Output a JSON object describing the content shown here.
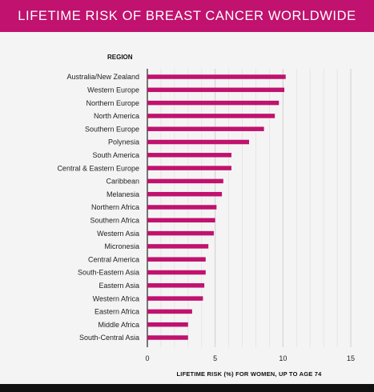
{
  "chart_data": {
    "type": "bar",
    "orientation": "horizontal",
    "title": "LIFETIME RISK OF BREAST CANCER WORLDWIDE",
    "ylabel": "REGION",
    "xlabel": "LIFETIME RISK (%) FOR WOMEN, UP TO AGE 74",
    "xlim": [
      0,
      15
    ],
    "xticks": [
      "0",
      "5",
      "10",
      "15"
    ],
    "grid": true,
    "categories": [
      "Australia/New Zealand",
      "Western Europe",
      "Northern Europe",
      "North America",
      "Southern Europe",
      "Polynesia",
      "South America",
      "Central & Eastern Europe",
      "Caribbean",
      "Melanesia",
      "Northern Africa",
      "Southern Africa",
      "Western Asia",
      "Micronesia",
      "Central America",
      "South-Eastern Asia",
      "Eastern Asia",
      "Western Africa",
      "Eastern Africa",
      "Middle Africa",
      "South-Central Asia"
    ],
    "values": [
      10.2,
      10.1,
      9.7,
      9.4,
      8.6,
      7.5,
      6.2,
      6.2,
      5.6,
      5.5,
      5.1,
      5.0,
      4.9,
      4.5,
      4.3,
      4.3,
      4.2,
      4.1,
      3.3,
      3.0,
      3.0
    ],
    "bar_color": "#c0126e"
  }
}
